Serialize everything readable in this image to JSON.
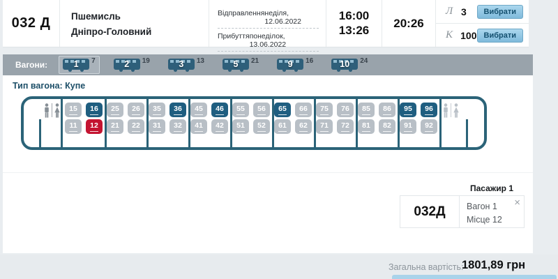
{
  "train": {
    "number": "032 Д",
    "route_from": "Пшемисль",
    "route_to": "Дніпро-Головний",
    "departure_label": "Відправлення",
    "departure_value": "неділя, 12.06.2022",
    "arrival_label": "Прибуття",
    "arrival_value": "понеділок, 13.06.2022",
    "departure_time": "16:00",
    "arrival_time": "13:26",
    "duration": "20:26",
    "classes": [
      {
        "code": "Л",
        "count": "3",
        "button": "Вибрати"
      },
      {
        "code": "К",
        "count": "100",
        "button": "Вибрати"
      }
    ]
  },
  "wagons": {
    "label": "Вагони:",
    "tabs": [
      {
        "number": "1",
        "free": "7",
        "selected": true
      },
      {
        "number": "2",
        "free": "19",
        "selected": false
      },
      {
        "number": "3",
        "free": "13",
        "selected": false
      },
      {
        "number": "5",
        "free": "21",
        "selected": false
      },
      {
        "number": "9",
        "free": "16",
        "selected": false
      },
      {
        "number": "10",
        "free": "24",
        "selected": false
      }
    ]
  },
  "seatmap": {
    "type_label": "Тип вагона: Купе",
    "top_row": [
      15,
      16,
      25,
      26,
      35,
      36,
      45,
      46,
      55,
      56,
      65,
      66,
      75,
      76,
      85,
      86,
      95,
      96
    ],
    "bottom_row": [
      11,
      12,
      21,
      22,
      31,
      32,
      41,
      42,
      51,
      52,
      61,
      62,
      71,
      72,
      81,
      82,
      91,
      92
    ],
    "free_seats": [
      16,
      36,
      46,
      65,
      95,
      96
    ],
    "selected_seats": [
      12
    ]
  },
  "passenger": {
    "title": "Пасажир 1",
    "train_number": "032Д",
    "wagon_label": "Вагон 1",
    "seat_label": "Місце 12",
    "close_icon": "×"
  },
  "footer": {
    "total_label": "Загальна вартість:",
    "total_value": "1801,89 грн"
  },
  "colors": {
    "seat_free": "#1f5e80",
    "seat_selected": "#c41431",
    "seat_taken": "#b8bfc6",
    "wagon_outline": "#2b6378",
    "wagon_bar": "#99a3ab",
    "button_blue": "#8fc6e2"
  }
}
